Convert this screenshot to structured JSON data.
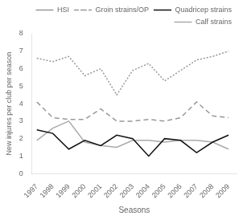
{
  "chart_data": {
    "type": "line",
    "x": [
      1997,
      1998,
      1999,
      2000,
      2001,
      2002,
      2003,
      2004,
      2005,
      2006,
      2007,
      2008,
      2009
    ],
    "series": [
      {
        "name": "HSI",
        "color": "#999999",
        "line_style": "dotted",
        "values": [
          6.6,
          6.4,
          6.7,
          5.6,
          6.0,
          4.5,
          5.9,
          6.3,
          5.3,
          5.9,
          6.5,
          6.7,
          7.0
        ]
      },
      {
        "name": "Groin strains/OP",
        "color": "#999999",
        "line_style": "dashed",
        "values": [
          4.1,
          3.2,
          3.1,
          3.1,
          3.7,
          3.0,
          3.0,
          3.1,
          3.0,
          3.2,
          4.1,
          3.3,
          3.2
        ]
      },
      {
        "name": "Quadricep strains",
        "color": "#111111",
        "line_style": "solid",
        "values": [
          2.5,
          2.3,
          1.4,
          1.9,
          1.6,
          2.2,
          2.0,
          1.0,
          2.0,
          1.9,
          1.2,
          1.8,
          2.2
        ]
      },
      {
        "name": "Calf strains",
        "color": "#aaaaaa",
        "line_style": "solid",
        "values": [
          1.9,
          2.6,
          3.0,
          1.8,
          1.6,
          1.5,
          1.9,
          1.9,
          1.8,
          1.9,
          1.9,
          1.8,
          1.4
        ]
      }
    ],
    "xlabel": "Seasons",
    "ylabel": "New injures per club per season",
    "xlim": [
      1996.7,
      2009.5
    ],
    "xticks": [
      1997,
      1998,
      1999,
      2000,
      2001,
      2002,
      2003,
      2004,
      2005,
      2006,
      2007,
      2008,
      2009
    ],
    "ylim": [
      0,
      8
    ],
    "yticks": [
      0,
      1,
      2,
      3,
      4,
      5,
      6,
      7,
      8
    ],
    "marker": "none",
    "grid": false,
    "legend": "upper right"
  }
}
